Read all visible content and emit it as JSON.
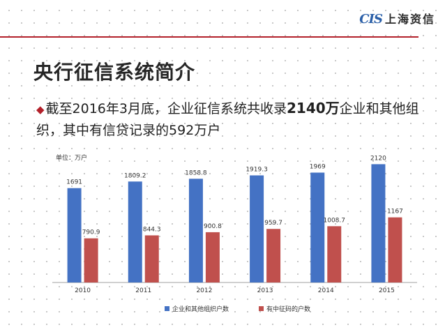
{
  "header": {
    "logo_mark": "CIS",
    "logo_text": "上海资信",
    "accent": "#b3202a"
  },
  "slide": {
    "title": "央行征信系统简介",
    "bullet": {
      "icon": "diamond-bullet-icon",
      "part1": "截至2016年3月底，企业征信系统共收录",
      "bold": "2140万",
      "part2": "企业和其他组织，其中有信贷记录的592万户"
    }
  },
  "chart_data": {
    "type": "bar",
    "unit_label": "单位：万户",
    "categories": [
      "2010",
      "2011",
      "2012",
      "2013",
      "2014",
      "2015"
    ],
    "series": [
      {
        "name": "企业和其他组织户数",
        "color": "#4472c4",
        "values": [
          1691,
          1809.2,
          1858.8,
          1919.3,
          1969,
          2120
        ],
        "labels": [
          "1691",
          "1809.2",
          "1858.8",
          "1919.3",
          "1969",
          "2120"
        ]
      },
      {
        "name": "有中征码的户数",
        "color": "#c0504d",
        "values": [
          790.9,
          844.3,
          900.8,
          959.7,
          1008.7,
          1167
        ],
        "labels": [
          "790.9",
          "844.3",
          "900.8",
          "959.7",
          "1008.7",
          "1167"
        ]
      }
    ],
    "ylim": [
      0,
      2400
    ],
    "legend": "bottom",
    "grid": false
  }
}
